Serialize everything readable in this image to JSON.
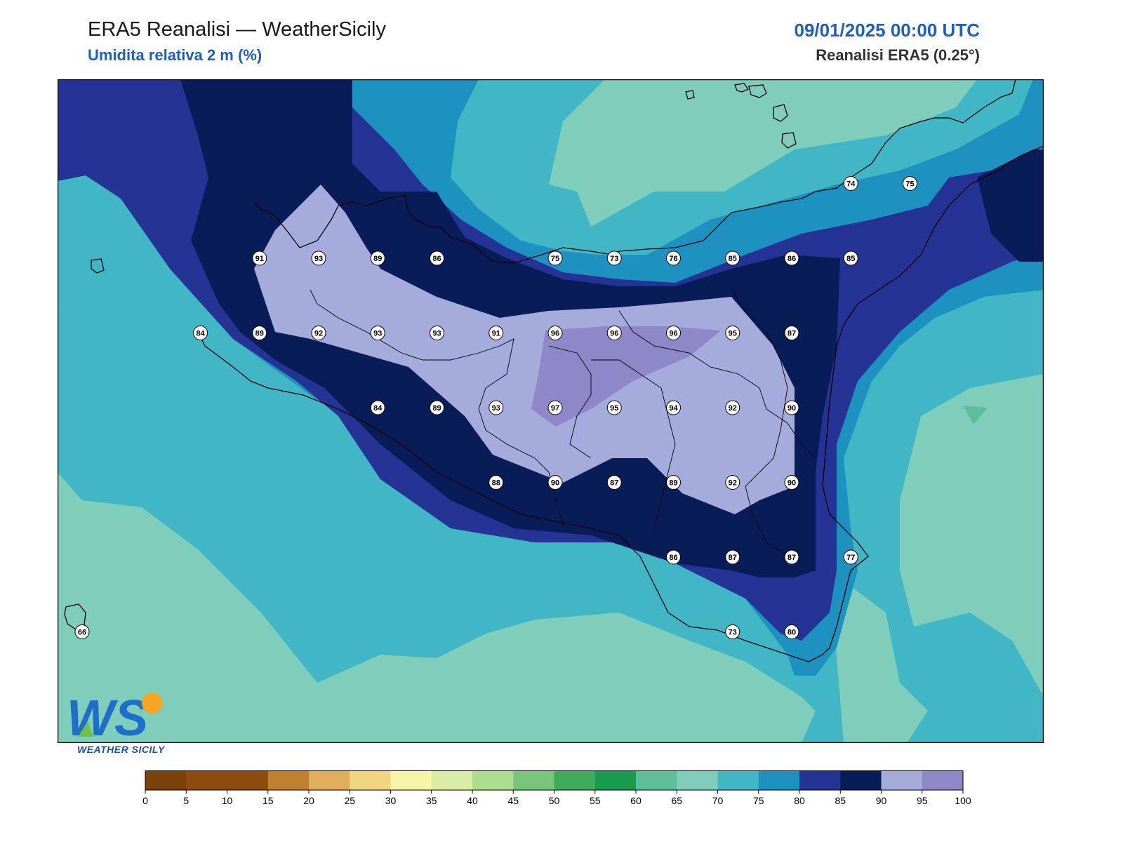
{
  "header": {
    "title": "ERA5 Reanalisi — WeatherSicily",
    "subtitle": "Umidita relativa 2 m (%)",
    "datetime": "09/01/2025 00:00 UTC",
    "source": "Reanalisi ERA5 (0.25°)"
  },
  "logo": {
    "letters": "WS",
    "text": "WEATHER SICILY",
    "icon": "weathersicily-logo-icon"
  },
  "colors": {
    "lt60": "#3ab59a",
    "c65": "#7fcdbb",
    "c70": "#7fcdbb",
    "c75": "#41b6c4",
    "c80": "#1d91c0",
    "c85": "#253494",
    "c90": "#081d58",
    "c95": "#a5acdb",
    "c100": "#8e88c9",
    "border": "#000000"
  },
  "colorbar": {
    "ticks": [
      "0",
      "5",
      "10",
      "15",
      "20",
      "25",
      "30",
      "35",
      "40",
      "45",
      "50",
      "55",
      "60",
      "65",
      "70",
      "75",
      "80",
      "85",
      "90",
      "95",
      "100"
    ],
    "colors": [
      "#7a4208",
      "#8b4c0e",
      "#8b4c0e",
      "#c0802f",
      "#e1ae5b",
      "#f1d67f",
      "#f7f5a8",
      "#d9eea4",
      "#addd8e",
      "#78c679",
      "#41ab5d",
      "#189a4f",
      "#5cbf9a",
      "#7fcdbb",
      "#41b6c4",
      "#1d91c0",
      "#253494",
      "#081d58",
      "#a5acdb",
      "#8e88c9"
    ]
  },
  "stations": [
    {
      "v": "91",
      "lat": 38.25,
      "lon": 12.5
    },
    {
      "v": "93",
      "lat": 38.25,
      "lon": 13.0
    },
    {
      "v": "89",
      "lat": 38.25,
      "lon": 13.5
    },
    {
      "v": "86",
      "lat": 38.25,
      "lon": 14.0
    },
    {
      "v": "75",
      "lat": 38.25,
      "lon": 15.0
    },
    {
      "v": "73",
      "lat": 38.25,
      "lon": 15.5
    },
    {
      "v": "76",
      "lat": 38.25,
      "lon": 16.0
    },
    {
      "v": "85",
      "lat": 38.25,
      "lon": 16.5
    },
    {
      "v": "86",
      "lat": 38.25,
      "lon": 17.0
    },
    {
      "v": "85",
      "lat": 38.25,
      "lon": 17.5
    },
    {
      "v": "74",
      "lat": 38.75,
      "lon": 17.5
    },
    {
      "v": "75",
      "lat": 38.75,
      "lon": 18.0
    },
    {
      "v": "84",
      "lat": 37.75,
      "lon": 12.0
    },
    {
      "v": "89",
      "lat": 37.75,
      "lon": 12.5
    },
    {
      "v": "92",
      "lat": 37.75,
      "lon": 13.0
    },
    {
      "v": "93",
      "lat": 37.75,
      "lon": 13.5
    },
    {
      "v": "93",
      "lat": 37.75,
      "lon": 14.0
    },
    {
      "v": "91",
      "lat": 37.75,
      "lon": 14.5
    },
    {
      "v": "96",
      "lat": 37.75,
      "lon": 15.0
    },
    {
      "v": "96",
      "lat": 37.75,
      "lon": 15.5
    },
    {
      "v": "96",
      "lat": 37.75,
      "lon": 16.0
    },
    {
      "v": "95",
      "lat": 37.75,
      "lon": 16.5
    },
    {
      "v": "87",
      "lat": 37.75,
      "lon": 17.0
    },
    {
      "v": "84",
      "lat": 37.25,
      "lon": 13.5
    },
    {
      "v": "89",
      "lat": 37.25,
      "lon": 14.0
    },
    {
      "v": "93",
      "lat": 37.25,
      "lon": 14.5
    },
    {
      "v": "97",
      "lat": 37.25,
      "lon": 15.0
    },
    {
      "v": "95",
      "lat": 37.25,
      "lon": 15.5
    },
    {
      "v": "94",
      "lat": 37.25,
      "lon": 16.0
    },
    {
      "v": "92",
      "lat": 37.25,
      "lon": 16.5
    },
    {
      "v": "90",
      "lat": 37.25,
      "lon": 17.0
    },
    {
      "v": "88",
      "lat": 36.75,
      "lon": 14.5
    },
    {
      "v": "90",
      "lat": 36.75,
      "lon": 15.0
    },
    {
      "v": "87",
      "lat": 36.75,
      "lon": 15.5
    },
    {
      "v": "89",
      "lat": 36.75,
      "lon": 16.0
    },
    {
      "v": "92",
      "lat": 36.75,
      "lon": 16.5
    },
    {
      "v": "90",
      "lat": 36.75,
      "lon": 17.0
    },
    {
      "v": "86",
      "lat": 36.25,
      "lon": 16.0
    },
    {
      "v": "87",
      "lat": 36.25,
      "lon": 16.5
    },
    {
      "v": "87",
      "lat": 36.25,
      "lon": 17.0
    },
    {
      "v": "77",
      "lat": 36.25,
      "lon": 17.5
    },
    {
      "v": "66",
      "lat": 35.75,
      "lon": 11.0
    },
    {
      "v": "73",
      "lat": 35.75,
      "lon": 16.5
    },
    {
      "v": "80",
      "lat": 35.75,
      "lon": 17.0
    }
  ]
}
